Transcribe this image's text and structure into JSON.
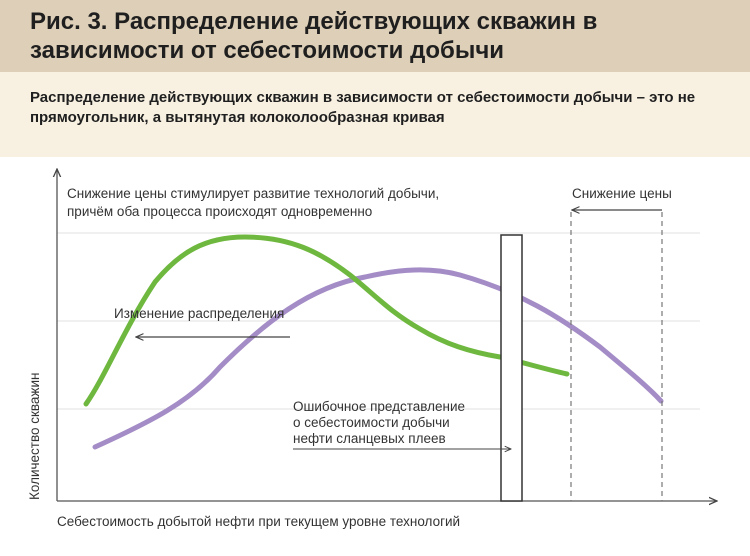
{
  "header": {
    "title": "Рис. 3. Распределение действующих скважин в зависимости от себестоимости добычи"
  },
  "subheader": {
    "text": "Распределение действующих скважин в зависимости от себестоимости добычи – это не прямоугольник, а вытянутая колоколообразная кривая"
  },
  "diagram": {
    "annotations": {
      "price_drop_line1": "Снижение цены стимулирует развитие технологий добычи,",
      "price_drop_line2": "причём оба процесса происходят одновременно",
      "price_drop_right": "Снижение цены",
      "distribution_change": "Изменение распределения",
      "misconception_line1": "Ошибочное представление",
      "misconception_line2": "о себестоимости добычи",
      "misconception_line3": "нефти сланцевых плеев"
    },
    "y_axis_label": "Количество скважин",
    "x_axis_label": "Себестоимость добытой нефти при текущем уровне технологий",
    "colors": {
      "green_curve": "#6fb83f",
      "purple_curve": "#a48cc6",
      "header_bg": "#ded0b8",
      "subheader_bg": "#f8f1e2"
    }
  }
}
